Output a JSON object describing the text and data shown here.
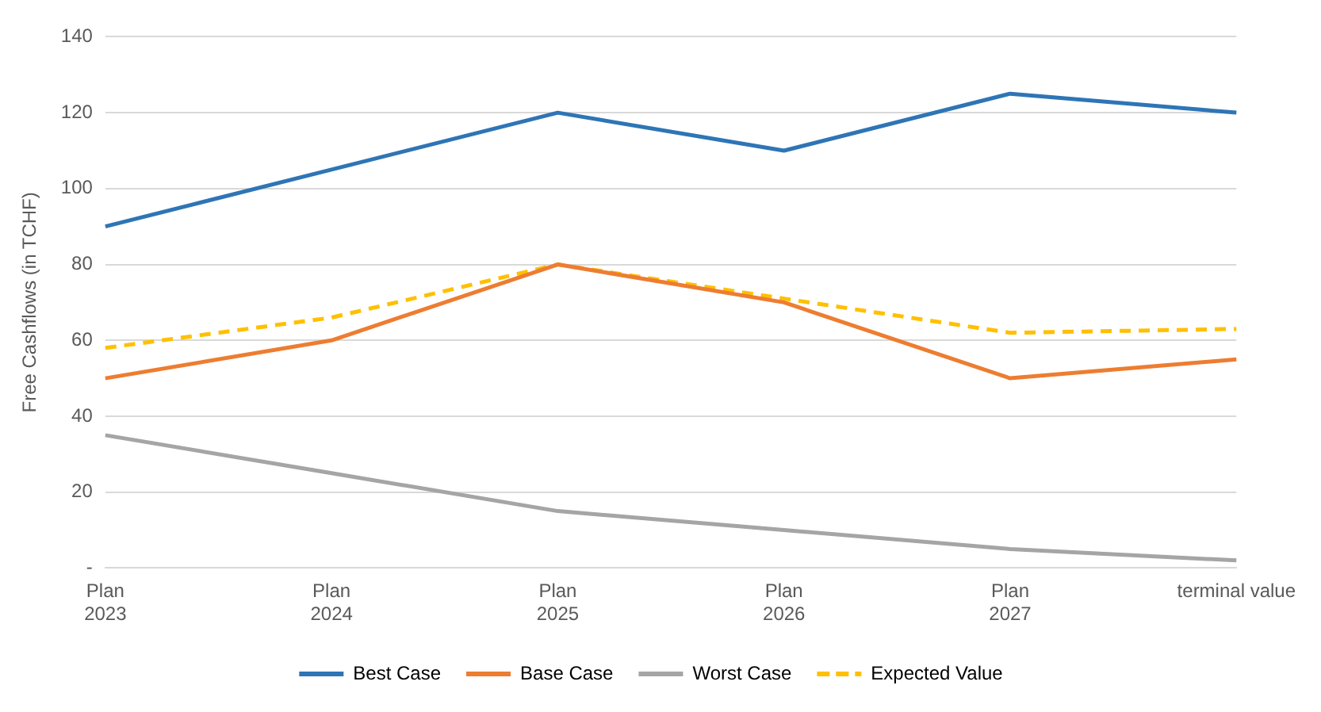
{
  "chart_data": {
    "type": "line",
    "ylabel": "Free Cashflows (in TCHF)",
    "categories": [
      "Plan\n2023",
      "Plan\n2024",
      "Plan\n2025",
      "Plan\n2026",
      "Plan\n2027",
      "terminal value"
    ],
    "series": [
      {
        "name": "Best Case",
        "color": "#2e75b6",
        "values": [
          90,
          105,
          120,
          110,
          125,
          120
        ],
        "line_style": "solid"
      },
      {
        "name": "Base Case",
        "color": "#ed7d31",
        "values": [
          50,
          60,
          80,
          70,
          50,
          55
        ],
        "line_style": "solid"
      },
      {
        "name": "Worst Case",
        "color": "#a5a5a5",
        "values": [
          35,
          25,
          15,
          10,
          5,
          2
        ],
        "line_style": "solid"
      },
      {
        "name": "Expected Value",
        "color": "#ffc000",
        "values": [
          58,
          66,
          80,
          71,
          62,
          63
        ],
        "line_style": "dashed"
      }
    ],
    "ylim": [
      0,
      140
    ],
    "yticks": [
      {
        "value": 0,
        "label": "-"
      },
      20,
      40,
      60,
      80,
      100,
      120,
      140
    ],
    "grid": "y",
    "legend": "bottom",
    "marker": "none"
  }
}
